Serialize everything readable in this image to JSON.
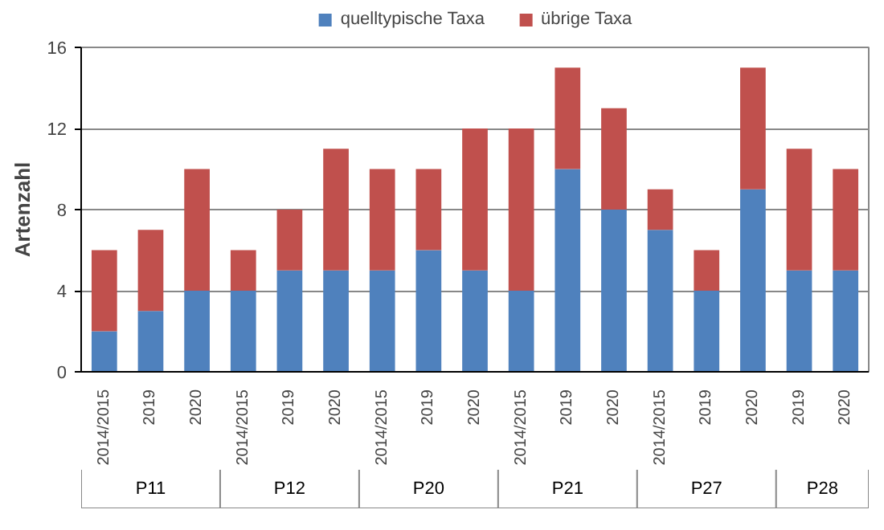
{
  "chart_data": {
    "type": "bar",
    "stacked": true,
    "ylabel": "Artenzahl",
    "categories": [
      "2014/2015",
      "2019",
      "2020",
      "2014/2015",
      "2019",
      "2020",
      "2014/2015",
      "2019",
      "2020",
      "2014/2015",
      "2019",
      "2020",
      "2014/2015",
      "2019",
      "2020",
      "2019",
      "2020"
    ],
    "annotations": [
      "P11",
      "P12",
      "P20",
      "P21",
      "P27",
      "P28"
    ],
    "series": [
      {
        "name": "quelltypische Taxa",
        "color": "#4f81bd",
        "values": [
          2,
          3,
          4,
          4,
          5,
          5,
          5,
          6,
          5,
          4,
          10,
          8,
          7,
          4,
          9,
          5,
          5
        ]
      },
      {
        "name": "übrige Taxa",
        "color": "#c0504d",
        "values": [
          4,
          4,
          6,
          2,
          3,
          6,
          5,
          4,
          7,
          8,
          5,
          5,
          2,
          2,
          6,
          6,
          5
        ]
      }
    ],
    "ylim": [
      0,
      16
    ],
    "yticks": [
      0,
      4,
      8,
      12,
      16
    ],
    "grid": "y",
    "legend": "top"
  }
}
